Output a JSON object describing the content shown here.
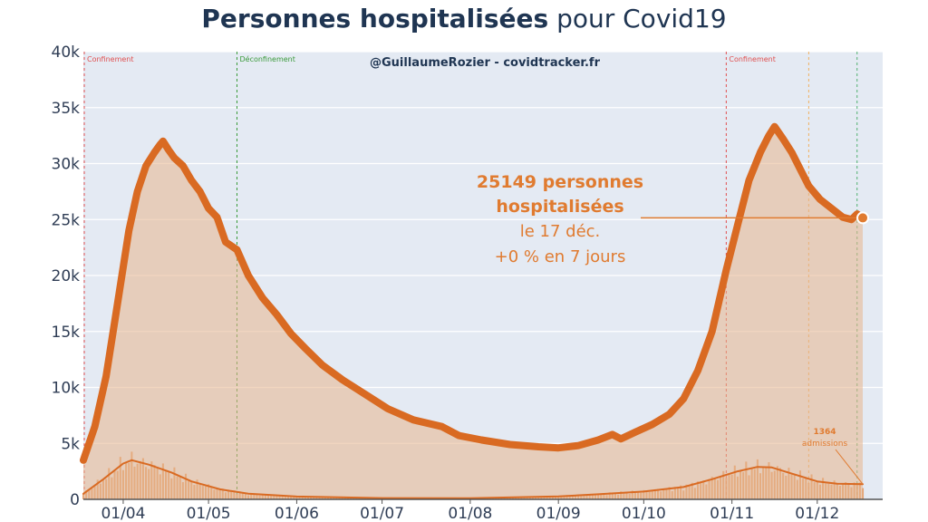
{
  "chart_data": {
    "type": "line",
    "title_bold": "Personnes hospitalisées",
    "title_rest": " pour Covid19",
    "credit": "@GuillaumeRozier - covidtracker.fr",
    "ylim": [
      0,
      40000
    ],
    "y_ticks": [
      {
        "value": 0,
        "label": "0"
      },
      {
        "value": 5000,
        "label": "5k"
      },
      {
        "value": 10000,
        "label": "10k"
      },
      {
        "value": 15000,
        "label": "15k"
      },
      {
        "value": 20000,
        "label": "20k"
      },
      {
        "value": 25000,
        "label": "25k"
      },
      {
        "value": 30000,
        "label": "30k"
      },
      {
        "value": 35000,
        "label": "35k"
      },
      {
        "value": 40000,
        "label": "40k"
      }
    ],
    "x_range": [
      "2020-03-18",
      "2020-12-24"
    ],
    "x_ticks": [
      {
        "date": "2020-04-01",
        "label": "01/04"
      },
      {
        "date": "2020-05-01",
        "label": "01/05"
      },
      {
        "date": "2020-06-01",
        "label": "01/06"
      },
      {
        "date": "2020-07-01",
        "label": "01/07"
      },
      {
        "date": "2020-08-01",
        "label": "01/08"
      },
      {
        "date": "2020-09-01",
        "label": "01/09"
      },
      {
        "date": "2020-10-01",
        "label": "01/10"
      },
      {
        "date": "2020-11-01",
        "label": "01/11"
      },
      {
        "date": "2020-12-01",
        "label": "01/12"
      }
    ],
    "events": [
      {
        "date": "2020-03-17",
        "label": "Confinement",
        "color": "#e05050"
      },
      {
        "date": "2020-05-11",
        "label": "Déconfinement",
        "color": "#3a9a3a"
      },
      {
        "date": "2020-10-30",
        "label": "Confinement",
        "color": "#e05050"
      },
      {
        "date": "2020-11-28",
        "label": "",
        "color": "#f0b060"
      },
      {
        "date": "2020-12-15",
        "label": "",
        "color": "#50b070"
      }
    ],
    "series": [
      {
        "name": "Hospitalisations",
        "color": "#d96a22",
        "points": [
          [
            "2020-03-18",
            3500
          ],
          [
            "2020-03-22",
            6500
          ],
          [
            "2020-03-26",
            11000
          ],
          [
            "2020-03-30",
            17500
          ],
          [
            "2020-04-03",
            24000
          ],
          [
            "2020-04-06",
            27500
          ],
          [
            "2020-04-09",
            29800
          ],
          [
            "2020-04-12",
            31000
          ],
          [
            "2020-04-14",
            31700
          ],
          [
            "2020-04-15",
            32000
          ],
          [
            "2020-04-17",
            31200
          ],
          [
            "2020-04-19",
            30500
          ],
          [
            "2020-04-22",
            29800
          ],
          [
            "2020-04-25",
            28500
          ],
          [
            "2020-04-28",
            27500
          ],
          [
            "2020-05-01",
            26000
          ],
          [
            "2020-05-04",
            25200
          ],
          [
            "2020-05-07",
            23000
          ],
          [
            "2020-05-11",
            22300
          ],
          [
            "2020-05-15",
            20000
          ],
          [
            "2020-05-20",
            18000
          ],
          [
            "2020-05-25",
            16500
          ],
          [
            "2020-05-30",
            14800
          ],
          [
            "2020-06-04",
            13500
          ],
          [
            "2020-06-10",
            12000
          ],
          [
            "2020-06-17",
            10700
          ],
          [
            "2020-06-25",
            9400
          ],
          [
            "2020-07-03",
            8100
          ],
          [
            "2020-07-12",
            7100
          ],
          [
            "2020-07-22",
            6500
          ],
          [
            "2020-07-28",
            5700
          ],
          [
            "2020-08-05",
            5300
          ],
          [
            "2020-08-15",
            4900
          ],
          [
            "2020-08-25",
            4700
          ],
          [
            "2020-09-01",
            4600
          ],
          [
            "2020-09-08",
            4800
          ],
          [
            "2020-09-15",
            5300
          ],
          [
            "2020-09-20",
            5800
          ],
          [
            "2020-09-23",
            5400
          ],
          [
            "2020-09-28",
            6000
          ],
          [
            "2020-10-04",
            6700
          ],
          [
            "2020-10-10",
            7600
          ],
          [
            "2020-10-15",
            9000
          ],
          [
            "2020-10-20",
            11500
          ],
          [
            "2020-10-25",
            15000
          ],
          [
            "2020-10-30",
            20500
          ],
          [
            "2020-11-03",
            24500
          ],
          [
            "2020-11-07",
            28500
          ],
          [
            "2020-11-11",
            31000
          ],
          [
            "2020-11-14",
            32500
          ],
          [
            "2020-11-16",
            33300
          ],
          [
            "2020-11-19",
            32200
          ],
          [
            "2020-11-22",
            31000
          ],
          [
            "2020-11-25",
            29500
          ],
          [
            "2020-11-28",
            28000
          ],
          [
            "2020-12-02",
            26800
          ],
          [
            "2020-12-06",
            26000
          ],
          [
            "2020-12-10",
            25200
          ],
          [
            "2020-12-13",
            25000
          ],
          [
            "2020-12-15",
            25500
          ],
          [
            "2020-12-17",
            25149
          ]
        ]
      },
      {
        "name": "Admissions",
        "color": "#d96a22",
        "points": [
          [
            "2020-03-18",
            500
          ],
          [
            "2020-03-25",
            1800
          ],
          [
            "2020-04-01",
            3200
          ],
          [
            "2020-04-04",
            3500
          ],
          [
            "2020-04-10",
            3100
          ],
          [
            "2020-04-18",
            2400
          ],
          [
            "2020-04-25",
            1600
          ],
          [
            "2020-05-05",
            900
          ],
          [
            "2020-05-15",
            500
          ],
          [
            "2020-06-01",
            250
          ],
          [
            "2020-07-01",
            110
          ],
          [
            "2020-08-01",
            100
          ],
          [
            "2020-09-01",
            260
          ],
          [
            "2020-09-15",
            450
          ],
          [
            "2020-10-01",
            700
          ],
          [
            "2020-10-15",
            1100
          ],
          [
            "2020-10-25",
            1800
          ],
          [
            "2020-11-03",
            2500
          ],
          [
            "2020-11-10",
            2900
          ],
          [
            "2020-11-15",
            2850
          ],
          [
            "2020-11-22",
            2300
          ],
          [
            "2020-12-01",
            1600
          ],
          [
            "2020-12-08",
            1400
          ],
          [
            "2020-12-17",
            1364
          ]
        ]
      }
    ],
    "annotation": {
      "line1": "25149 personnes",
      "line2": "hospitalisées",
      "line3": "le 17 déc.",
      "line4": "+0 % en 7 jours"
    },
    "admissions_annotation": {
      "value": "1364",
      "label": "admissions"
    },
    "grid": true
  }
}
